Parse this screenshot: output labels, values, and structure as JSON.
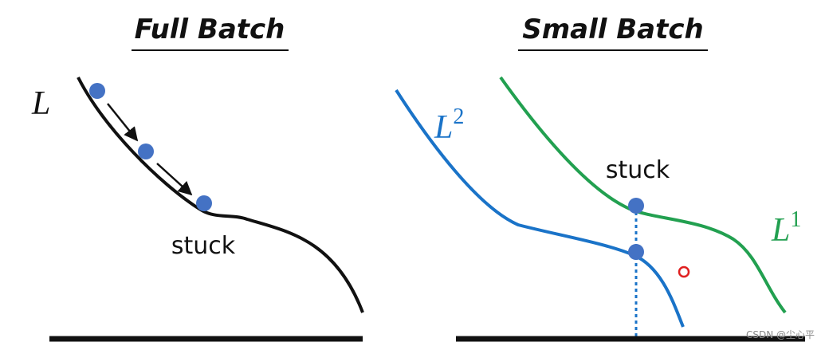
{
  "left_panel": {
    "title": "Full Batch",
    "curve_label": "L",
    "stuck_label": "stuck"
  },
  "right_panel": {
    "title": "Small Batch",
    "curve_labels": [
      {
        "base": "L",
        "sup": "2"
      },
      {
        "base": "L",
        "sup": "1"
      }
    ],
    "stuck_label": "stuck"
  },
  "watermark": "CSDN @尘心平"
}
